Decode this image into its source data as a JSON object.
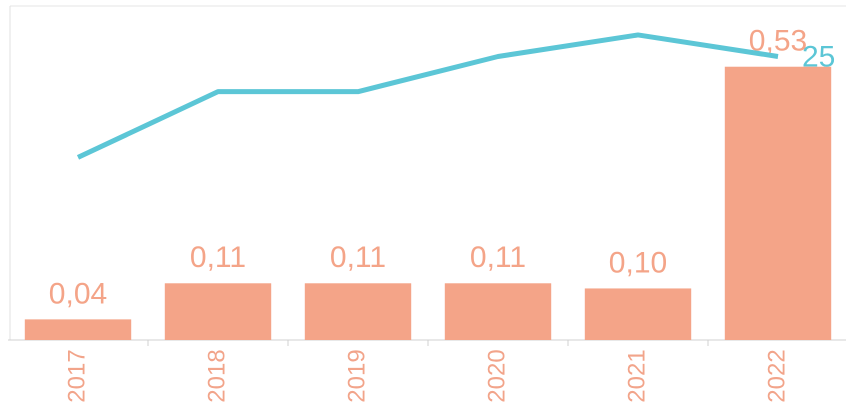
{
  "chart_data": {
    "type": "bar",
    "categories": [
      "2017",
      "2018",
      "2019",
      "2020",
      "2021",
      "2022"
    ],
    "ylim": [
      0,
      0.64
    ],
    "y2lim": [
      0,
      29.1
    ],
    "series": [
      {
        "name": null,
        "type": "bar",
        "color": "#f4a488",
        "values": [
          0.04,
          0.11,
          0.11,
          0.11,
          0.1,
          0.53
        ],
        "value_labels": [
          "0,04",
          "0,11",
          "0,11",
          "0,11",
          "0,10",
          "0,53"
        ]
      },
      {
        "name": null,
        "type": "line",
        "axis": "y2",
        "color": "#5cc6d6",
        "values": [
          16.1,
          21.9,
          21.9,
          25,
          26.9,
          25
        ],
        "value_labels": [
          null,
          null,
          null,
          null,
          null,
          "25"
        ]
      }
    ]
  }
}
